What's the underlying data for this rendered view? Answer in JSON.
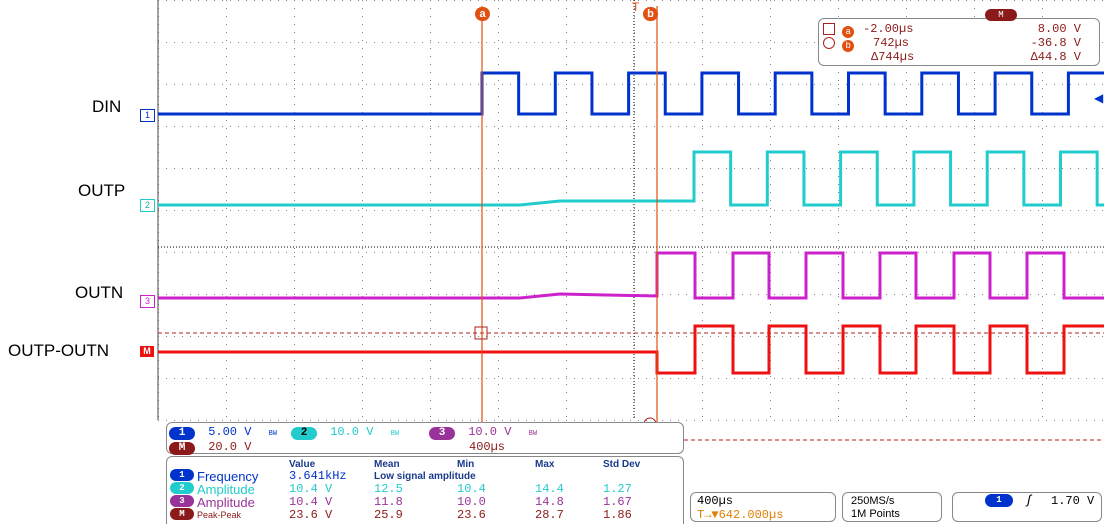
{
  "signal_labels": {
    "din": "DIN",
    "outp": "OUTP",
    "outn": "OUTN",
    "diff": "OUTP-OUTN"
  },
  "channel_markers": {
    "ch1": "1",
    "ch2": "2",
    "ch3": "3",
    "math": "M"
  },
  "cursor_tags": {
    "a": "a",
    "b": "b"
  },
  "cursor_readout": {
    "a_time": "-2.00µs",
    "a_volt": "8.00 V",
    "b_time": "742µs",
    "b_volt": "-36.8 V",
    "delta_time": "Δ744µs",
    "delta_volt": "Δ44.8 V",
    "menu_tag": "M"
  },
  "channel_settings": {
    "ch1_num": "1",
    "ch1_scale": "5.00 V",
    "ch2_num": "2",
    "ch2_scale": "10.0 V",
    "ch3_num": "3",
    "ch3_scale": "10.0 V",
    "bw_symbol": "BW",
    "math_num": "M",
    "math_scale": "20.0 V",
    "math_timebase": "400µs"
  },
  "measurements": {
    "headers": [
      "Value",
      "Mean",
      "Min",
      "Max",
      "Std Dev"
    ],
    "low_signal_note": "Low signal amplitude",
    "rows": [
      {
        "ch": "1",
        "name": "Frequency",
        "value": "3.641kHz",
        "mean": "",
        "min": "",
        "max": "",
        "std": ""
      },
      {
        "ch": "2",
        "name": "Amplitude",
        "value": "10.4 V",
        "mean": "12.5",
        "min": "10.4",
        "max": "14.4",
        "std": "1.27"
      },
      {
        "ch": "3",
        "name": "Amplitude",
        "value": "10.4 V",
        "mean": "11.8",
        "min": "10.0",
        "max": "14.8",
        "std": "1.67"
      },
      {
        "ch": "M",
        "name": "Peak-Peak",
        "value": "23.6 V",
        "mean": "25.9",
        "min": "23.6",
        "max": "28.7",
        "std": "1.86"
      }
    ]
  },
  "timebase": {
    "scale": "400µs",
    "trigger_pos": "T→▼642.000µs"
  },
  "acquisition": {
    "rate": "250MS/s",
    "points": "1M Points"
  },
  "trigger": {
    "source": "1",
    "slope": "ʃ",
    "level": "1.70 V"
  },
  "colors": {
    "ch1": "#0033cc",
    "ch2": "#22cccc",
    "ch3": "#cc22cc",
    "math": "#ee1111",
    "cursor": "#e05010",
    "mathdark": "#8b1a1a"
  }
}
